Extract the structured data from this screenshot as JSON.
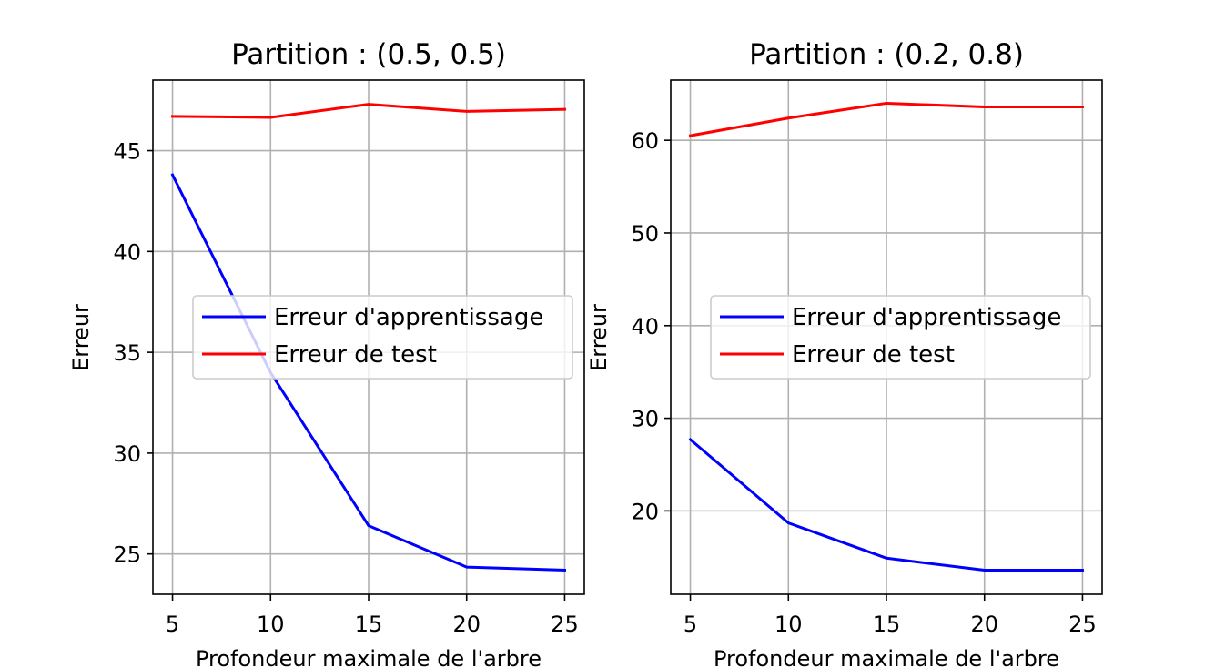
{
  "chart_data": [
    {
      "type": "line",
      "title": "Partition : (0.5, 0.5)",
      "xlabel": "Profondeur maximale de l'arbre",
      "ylabel": "Erreur",
      "x": [
        5,
        10,
        15,
        20,
        25
      ],
      "xticks": [
        5,
        10,
        15,
        20,
        25
      ],
      "yticks": [
        25,
        30,
        35,
        40,
        45
      ],
      "xlim": [
        4,
        26
      ],
      "ylim": [
        23.0,
        48.5
      ],
      "grid": true,
      "legend_position": "center-right",
      "series": [
        {
          "name": "Erreur d'apprentissage",
          "color": "#0000ff",
          "values": [
            43.8,
            34.0,
            26.4,
            24.35,
            24.2
          ]
        },
        {
          "name": "Erreur de test",
          "color": "#ff0000",
          "values": [
            46.7,
            46.65,
            47.3,
            46.95,
            47.05
          ]
        }
      ]
    },
    {
      "type": "line",
      "title": "Partition : (0.2, 0.8)",
      "xlabel": "Profondeur maximale de l'arbre",
      "ylabel": "Erreur",
      "x": [
        5,
        10,
        15,
        20,
        25
      ],
      "xticks": [
        5,
        10,
        15,
        20,
        25
      ],
      "yticks": [
        20,
        30,
        40,
        50,
        60
      ],
      "xlim": [
        4,
        26
      ],
      "ylim": [
        11.0,
        66.5
      ],
      "grid": true,
      "legend_position": "center-right",
      "series": [
        {
          "name": "Erreur d'apprentissage",
          "color": "#0000ff",
          "values": [
            27.7,
            18.7,
            14.9,
            13.6,
            13.6
          ]
        },
        {
          "name": "Erreur de test",
          "color": "#ff0000",
          "values": [
            60.5,
            62.4,
            64.0,
            63.6,
            63.6
          ]
        }
      ]
    }
  ]
}
